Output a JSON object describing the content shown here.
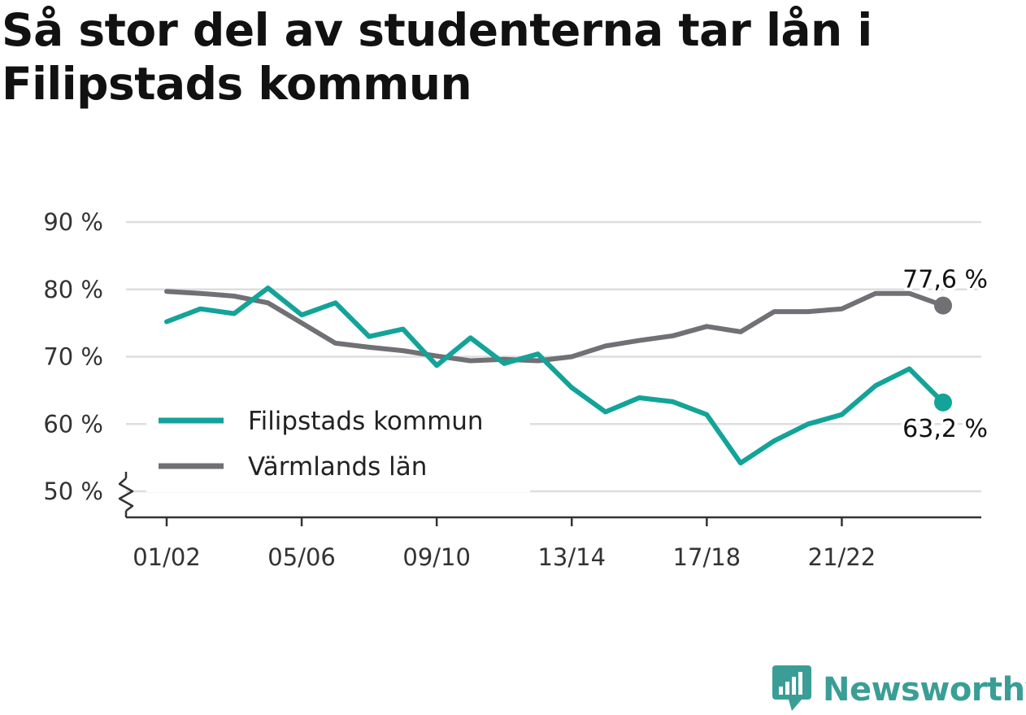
{
  "title": "Så stor del av studenterna tar lån i Filipstads kommun",
  "brand": "Newsworthy",
  "chart_data": {
    "type": "line",
    "title": "Så stor del av studenterna tar lån i Filipstads kommun",
    "xlabel": "",
    "ylabel": "",
    "ylim": [
      50,
      90
    ],
    "y_axis_break": true,
    "yticks": [
      50,
      60,
      70,
      80,
      90
    ],
    "ytick_labels": [
      "50 %",
      "60 %",
      "70 %",
      "80 %",
      "90 %"
    ],
    "xtick_labels": [
      "01/02",
      "05/06",
      "09/10",
      "13/14",
      "17/18",
      "21/22"
    ],
    "x": [
      "01/02",
      "02/03",
      "03/04",
      "04/05",
      "05/06",
      "06/07",
      "07/08",
      "08/09",
      "09/10",
      "10/11",
      "11/12",
      "12/13",
      "13/14",
      "14/15",
      "15/16",
      "16/17",
      "17/18",
      "18/19",
      "19/20",
      "20/21",
      "21/22",
      "22/23",
      "23/24",
      "24/25"
    ],
    "grid": true,
    "legend_position": "left",
    "series": [
      {
        "name": "Filipstads kommun",
        "color": "#13a399",
        "values": [
          75.2,
          77.1,
          76.4,
          80.2,
          76.2,
          78.0,
          73.0,
          74.1,
          68.7,
          72.8,
          69.0,
          70.4,
          65.4,
          61.8,
          63.9,
          63.3,
          61.4,
          54.2,
          57.5,
          60.0,
          61.4,
          65.7,
          68.2,
          63.2
        ],
        "end_label": "63,2 %"
      },
      {
        "name": "Värmlands län",
        "color": "#707075",
        "values": [
          79.7,
          79.4,
          79.0,
          78.0,
          75.0,
          72.0,
          71.4,
          70.9,
          70.1,
          69.4,
          69.6,
          69.4,
          70.0,
          71.6,
          72.4,
          73.1,
          74.5,
          73.7,
          76.7,
          76.7,
          77.1,
          79.4,
          79.4,
          77.6
        ],
        "end_label": "77,6 %"
      }
    ]
  }
}
